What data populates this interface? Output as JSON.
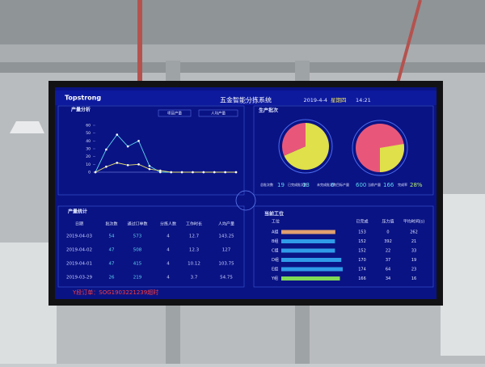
{
  "header": {
    "logo": "Topstrong",
    "title": "五金智能分拣系统",
    "date": "2019-4-4",
    "weekday": "星期四",
    "time": "14:21"
  },
  "output_analysis": {
    "title": "产量分析",
    "buttons": [
      "项目产量",
      "人均产量"
    ],
    "chart_data": {
      "type": "line",
      "categories": [
        null,
        null,
        null,
        null,
        null,
        null,
        null,
        null,
        null,
        null,
        null,
        null,
        null,
        null
      ],
      "series": [
        {
          "color": "#5fd6f0",
          "values": [
            0,
            29,
            48,
            33,
            40,
            8,
            0,
            0,
            0,
            0,
            0,
            0,
            0,
            0
          ]
        },
        {
          "color": "#e8e06a",
          "values": [
            0,
            7,
            12,
            9,
            10,
            4,
            2,
            0,
            0,
            0,
            0,
            0,
            0,
            0
          ]
        }
      ],
      "ylim": [
        0,
        60
      ],
      "yticks": [
        0,
        10,
        20,
        30,
        40,
        50,
        60
      ],
      "grid": false
    }
  },
  "batches": {
    "title": "生产批次",
    "done_color": "#dfe04a",
    "pending_color": "#e8577a",
    "stats": [
      {
        "label": "总批次数",
        "value": 19
      },
      {
        "label": "已完成批次数",
        "value": 13
      },
      {
        "label": "未完成批次数",
        "value": 6
      }
    ],
    "output": [
      {
        "label": "目标产量",
        "value": 600
      },
      {
        "label": "当前产量",
        "value": 166
      },
      {
        "label": "完成率",
        "value": 28,
        "value_label": "28%"
      }
    ]
  },
  "table": {
    "title": "产量统计",
    "headers": [
      "日期",
      "批次数",
      "通过订单数",
      "分拣人数",
      "工作时长",
      "人均产量"
    ],
    "rows": [
      [
        "2019-04-03",
        54,
        573,
        4,
        12.7,
        143.25
      ],
      [
        "2019-04-02",
        47,
        508,
        4,
        12.3,
        127
      ],
      [
        "2019-04-01",
        47,
        415,
        4,
        10.12,
        103.75
      ],
      [
        "2019-03-29",
        26,
        219,
        4,
        3.7,
        54.75
      ]
    ]
  },
  "alert": "Y段订单：SOG1903221239超时",
  "stations": {
    "title": "当前工位",
    "headers": [
      "工位",
      "已完成",
      "压力值",
      "平均时间(s)"
    ],
    "bar_colors": [
      "#e0a070",
      "#2f9be8",
      "#2f9be8",
      "#2f9be8",
      "#2f9be8",
      "#7ed957"
    ],
    "rows": [
      [
        "A组",
        153,
        0,
        262
      ],
      [
        "B组",
        152,
        392,
        21
      ],
      [
        "C组",
        152,
        22,
        33
      ],
      [
        "D组",
        170,
        37,
        19
      ],
      [
        "E组",
        174,
        64,
        23
      ],
      [
        "Y组",
        166,
        34,
        16
      ]
    ]
  }
}
